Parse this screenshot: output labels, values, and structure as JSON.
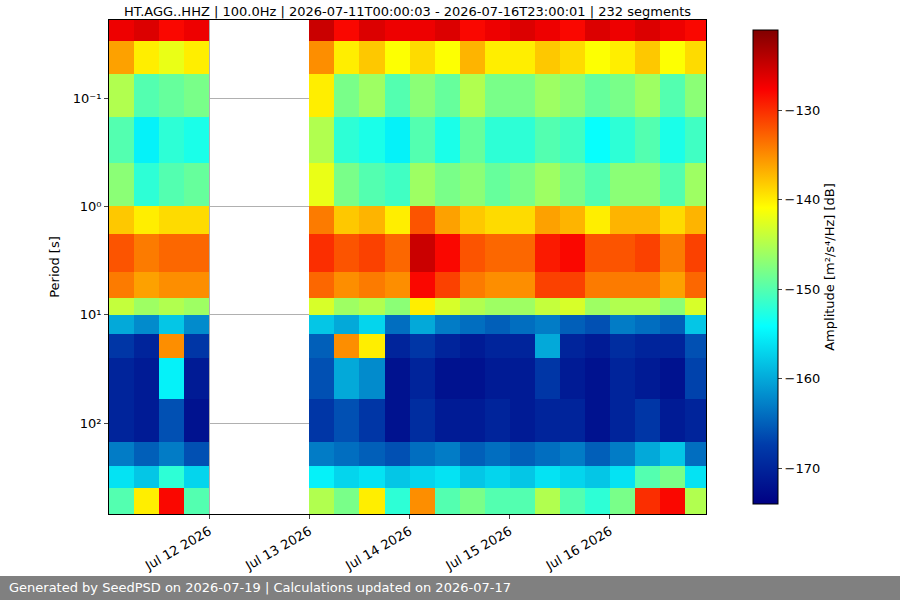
{
  "chart_data": {
    "type": "heatmap",
    "title": "HT.AGG..HHZ | 100.0Hz | 2026-07-11T00:00:03 - 2026-07-16T23:00:01 | 232 segments",
    "footer": "Generated by SeedPSD on 2026-07-19 | Calculations updated on 2026-07-17",
    "ylabel": "Period [s]",
    "colorbar_title": "Amplitude [m²/s⁴/Hz] [dB]",
    "color": "Jet",
    "log": "y",
    "grid": true,
    "x": [
      "2026-07-11 00:00",
      "2026-07-11 06:00",
      "2026-07-11 12:00",
      "2026-07-11 18:00",
      "2026-07-12 00:00",
      "2026-07-12 06:00",
      "2026-07-12 12:00",
      "2026-07-12 18:00",
      "2026-07-13 00:00",
      "2026-07-13 06:00",
      "2026-07-13 12:00",
      "2026-07-13 18:00",
      "2026-07-14 00:00",
      "2026-07-14 06:00",
      "2026-07-14 12:00",
      "2026-07-14 18:00",
      "2026-07-15 00:00",
      "2026-07-15 06:00",
      "2026-07-15 12:00",
      "2026-07-15 18:00",
      "2026-07-16 00:00",
      "2026-07-16 06:00",
      "2026-07-16 12:00",
      "2026-07-16 18:00",
      "2026-07-17 00:00"
    ],
    "y": [
      0.019,
      0.03,
      0.06,
      0.15,
      0.4,
      1,
      1.8,
      4,
      7,
      10,
      15,
      25,
      60,
      150,
      250,
      400,
      690
    ],
    "z": [
      [
        -127,
        -126,
        -128,
        -127,
        null,
        null,
        null,
        null,
        -125,
        -128,
        -126,
        -127,
        -127,
        -126,
        -128,
        -127,
        -126,
        -127,
        -128,
        -126,
        -127,
        -126,
        -127,
        -128
      ],
      [
        -136,
        -140,
        -142,
        -140,
        null,
        null,
        null,
        null,
        -135,
        -140,
        -138,
        -141,
        -139,
        -141,
        -137,
        -140,
        -140,
        -138,
        -139,
        -141,
        -140,
        -138,
        -141,
        -139
      ],
      [
        -145,
        -150,
        -149,
        -148,
        null,
        null,
        null,
        null,
        -140,
        -148,
        -146,
        -150,
        -147,
        -149,
        -145,
        -148,
        -148,
        -146,
        -147,
        -149,
        -148,
        -146,
        -150,
        -147
      ],
      [
        -150,
        -155,
        -152,
        -153,
        null,
        null,
        null,
        null,
        -145,
        -152,
        -153,
        -155,
        -150,
        -153,
        -149,
        -152,
        -152,
        -150,
        -151,
        -154,
        -152,
        -150,
        -153,
        -151
      ],
      [
        -147,
        -152,
        -150,
        -149,
        null,
        null,
        null,
        null,
        -142,
        -148,
        -150,
        -151,
        -146,
        -148,
        -147,
        -149,
        -148,
        -146,
        -148,
        -150,
        -147,
        -147,
        -150,
        -146
      ],
      [
        -138,
        -140,
        -139,
        -139,
        null,
        null,
        null,
        null,
        -134,
        -138,
        -137,
        -140,
        -132,
        -136,
        -138,
        -139,
        -139,
        -136,
        -137,
        -140,
        -137,
        -137,
        -139,
        -137
      ],
      [
        -132,
        -134,
        -133,
        -133,
        null,
        null,
        null,
        null,
        -130,
        -132,
        -131,
        -133,
        -125,
        -128,
        -132,
        -133,
        -133,
        -129,
        -128,
        -132,
        -132,
        -131,
        -134,
        -131
      ],
      [
        -134,
        -136,
        -135,
        -135,
        null,
        null,
        null,
        null,
        -133,
        -135,
        -134,
        -135,
        -128,
        -131,
        -134,
        -135,
        -135,
        -131,
        -131,
        -134,
        -134,
        -134,
        -136,
        -133
      ],
      [
        -144,
        -146,
        -145,
        -146,
        null,
        null,
        null,
        null,
        -143,
        -146,
        -145,
        -147,
        -140,
        -143,
        -145,
        -146,
        -146,
        -144,
        -143,
        -146,
        -145,
        -145,
        -147,
        -143
      ],
      [
        -160,
        -162,
        -158,
        -162,
        null,
        null,
        null,
        null,
        -158,
        -160,
        -157,
        -164,
        -160,
        -163,
        -164,
        -165,
        -164,
        -163,
        -165,
        -166,
        -163,
        -164,
        -165,
        -158
      ],
      [
        -168,
        -170,
        -135,
        -168,
        null,
        null,
        null,
        null,
        -165,
        -135,
        -140,
        -170,
        -168,
        -170,
        -171,
        -170,
        -170,
        -160,
        -170,
        -171,
        -169,
        -170,
        -170,
        -166
      ],
      [
        -170,
        -171,
        -155,
        -171,
        null,
        null,
        null,
        null,
        -166,
        -160,
        -162,
        -172,
        -170,
        -172,
        -172,
        -171,
        -171,
        -168,
        -171,
        -172,
        -170,
        -171,
        -172,
        -167
      ],
      [
        -170,
        -171,
        -166,
        -172,
        null,
        null,
        null,
        null,
        -168,
        -166,
        -168,
        -172,
        -169,
        -171,
        -171,
        -170,
        -171,
        -170,
        -170,
        -172,
        -170,
        -168,
        -171,
        -170
      ],
      [
        -163,
        -165,
        -163,
        -166,
        null,
        null,
        null,
        null,
        -163,
        -164,
        -165,
        -166,
        -164,
        -163,
        -165,
        -164,
        -165,
        -164,
        -163,
        -165,
        -163,
        -160,
        -158,
        -164
      ],
      [
        -156,
        -158,
        -152,
        -157,
        null,
        null,
        null,
        null,
        -155,
        -157,
        -156,
        -158,
        -157,
        -156,
        -158,
        -157,
        -158,
        -156,
        -157,
        -158,
        -156,
        -150,
        -148,
        -156
      ],
      [
        -150,
        -140,
        -128,
        -150,
        null,
        null,
        null,
        null,
        -145,
        -148,
        -140,
        -152,
        -135,
        -150,
        -148,
        -150,
        -150,
        -145,
        -150,
        -152,
        -148,
        -130,
        -128,
        -145
      ]
    ],
    "xlim": [
      "2026-07-11 00:00",
      "2026-07-16 23:00"
    ],
    "xticks": [
      {
        "value": "2026-07-12",
        "label": "Jul 12 2026"
      },
      {
        "value": "2026-07-13",
        "label": "Jul 13 2026"
      },
      {
        "value": "2026-07-14",
        "label": "Jul 14 2026"
      },
      {
        "value": "2026-07-15",
        "label": "Jul 15 2026"
      },
      {
        "value": "2026-07-16",
        "label": "Jul 16 2026"
      }
    ],
    "ylim": [
      690,
      0.019
    ],
    "yticks": [
      {
        "value": 0.1,
        "label": "10⁻¹"
      },
      {
        "value": 1,
        "label": "10⁰"
      },
      {
        "value": 10,
        "label": "10¹"
      },
      {
        "value": 100,
        "label": "10²"
      }
    ],
    "zlim": [
      -174,
      -121
    ],
    "zticks": [
      -170,
      -160,
      -150,
      -140,
      -130
    ]
  }
}
